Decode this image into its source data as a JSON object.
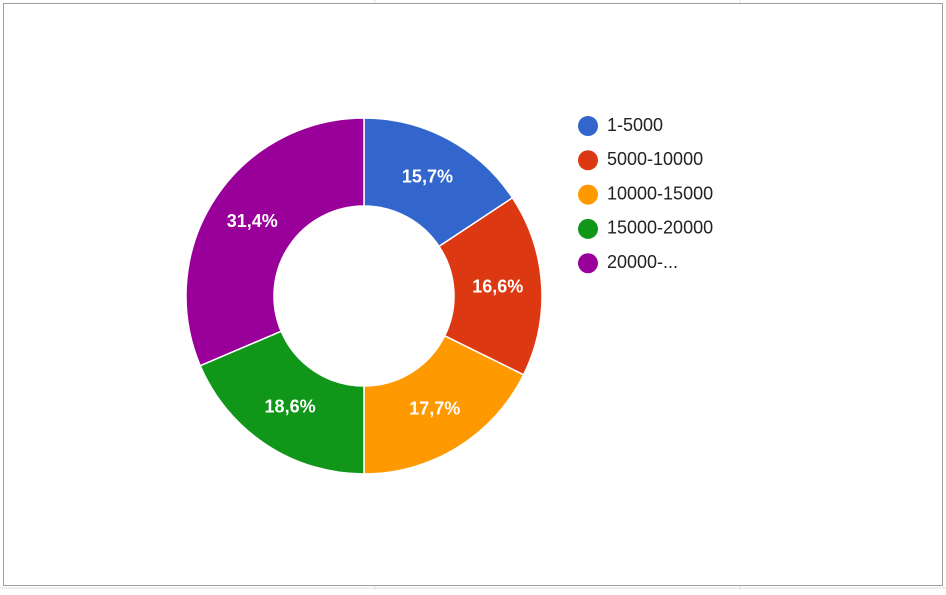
{
  "chart_data": {
    "type": "pie",
    "donut": true,
    "categories": [
      "1-5000",
      "5000-10000",
      "10000-15000",
      "15000-20000",
      "20000-..."
    ],
    "values": [
      15.7,
      16.6,
      17.7,
      18.6,
      31.4
    ],
    "value_labels": [
      "15,7%",
      "16,6%",
      "17,7%",
      "18,6%",
      "31,4%"
    ],
    "colors": [
      "#3366cc",
      "#dc3912",
      "#ff9900",
      "#109618",
      "#990099"
    ],
    "legend": "right"
  }
}
